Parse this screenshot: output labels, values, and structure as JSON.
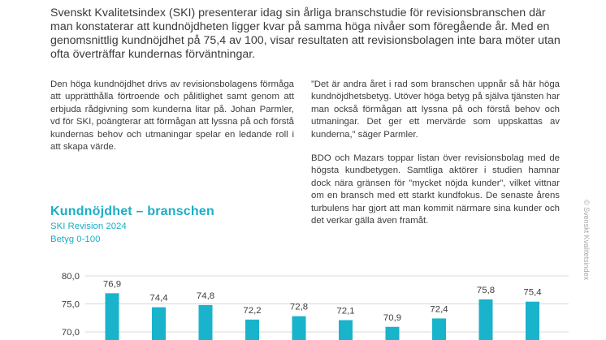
{
  "intro": "Svenskt Kvalitetsindex (SKI) presenterar idag sin årliga branschstudie för revisionsbranschen där man konstaterar att kundnöjdheten ligger kvar på samma höga nivåer som föregående år. Med en genomsnittlig kundnöjdhet på 75,4 av 100, visar resultaten att revisionsbolagen inte bara möter utan ofta överträffar kundernas förväntningar.",
  "left_column": "Den höga kundnöjdhet drivs av revisionsbolagens förmåga att upprätthålla förtroende och pålitlighet samt genom att erbjuda rådgivning som kunderna litar på. Johan Parmler, vd för SKI, poängterar att förmågan att lyssna på och förstå kundernas behov och utmaningar spelar en ledande roll i att skapa värde.",
  "right_column": {
    "quote": "”Det är andra året i rad som branschen uppnår så här höga kundnöjdhetsbetyg. Utöver höga betyg på själva tjänsten har man också förmågan att lyssna på och förstå behov och utmaningar. Det ger ett mervärde som uppskattas av kunderna,” säger Parmler.",
    "paragraph": "BDO och Mazars toppar listan över revisionsbolag med de högsta kundbetygen. Samtliga aktörer i studien hamnar dock nära gränsen för ”mycket nöjda kunder”, vilket vittnar om en bransch med ett starkt kundfokus. De senaste årens turbulens har gjort att man kommit närmare sina kunder och det verkar gälla även framåt."
  },
  "watermark": "© Svenskt Kvalitetsindex",
  "colors": {
    "accent": "#1aaec6",
    "bar": "#19b3cc",
    "text": "#3c3c3c",
    "grid": "#d9d9d9"
  },
  "chart_data": {
    "type": "bar",
    "title": "Kundnöjdhet – branschen",
    "subtitle": "SKI Revision 2024",
    "subtitle2": "Betyg 0-100",
    "yticks": [
      "80,0",
      "75,0",
      "70,0"
    ],
    "ylim": [
      66,
      80
    ],
    "grid": true,
    "values": [
      76.9,
      74.4,
      74.8,
      72.2,
      72.8,
      72.1,
      70.9,
      72.4,
      75.8,
      75.4
    ],
    "labels": [
      "76,9",
      "74,4",
      "74,8",
      "72,2",
      "72,8",
      "72,1",
      "70,9",
      "72,4",
      "75,8",
      "75,4"
    ]
  }
}
